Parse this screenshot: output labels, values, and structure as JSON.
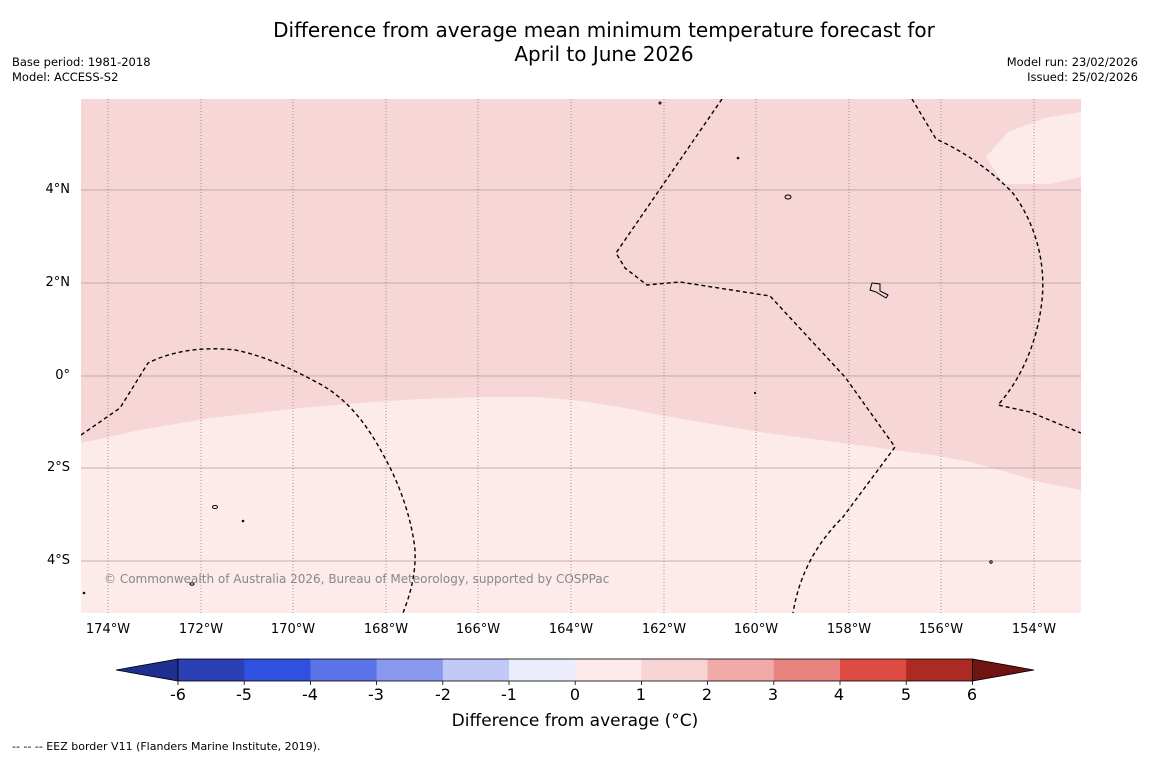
{
  "title": "Difference from average mean minimum temperature forecast for\nApril to June 2026",
  "meta_left": {
    "base_period": "Base period: 1981-2018",
    "model": "Model: ACCESS-S2"
  },
  "meta_right": {
    "model_run": "Model run: 23/02/2026",
    "issued": "Issued: 25/02/2026"
  },
  "latitude_labels": [
    "4°N",
    "2°N",
    "0°",
    "2°S",
    "4°S"
  ],
  "longitude_labels": [
    "174°W",
    "172°W",
    "170°W",
    "168°W",
    "166°W",
    "164°W",
    "162°W",
    "160°W",
    "158°W",
    "156°W",
    "154°W"
  ],
  "colorbar": {
    "title": "Difference from average (°C)",
    "tick_labels": [
      "-6",
      "-5",
      "-4",
      "-3",
      "-2",
      "-1",
      "0",
      "1",
      "2",
      "3",
      "4",
      "5",
      "6"
    ],
    "colors": [
      "#1f2f8f",
      "#2b41b3",
      "#3050e0",
      "#5a73e6",
      "#8898ee",
      "#c3c9f6",
      "#ecedfc",
      "#fcebea",
      "#f8d3d3",
      "#f1aaa8",
      "#e8837d",
      "#dc4a42",
      "#ac2a24",
      "#6e1512"
    ]
  },
  "map_fill_colors": {
    "band_1_2": "#f6d6d6",
    "band_0_1": "#fcebea"
  },
  "copyright": "© Commonwealth of Australia 2026, Bureau of Meteorology, supported by COSPPac",
  "footer": "--  --  -- EEZ border V11 (Flanders Marine Institute, 2019)."
}
